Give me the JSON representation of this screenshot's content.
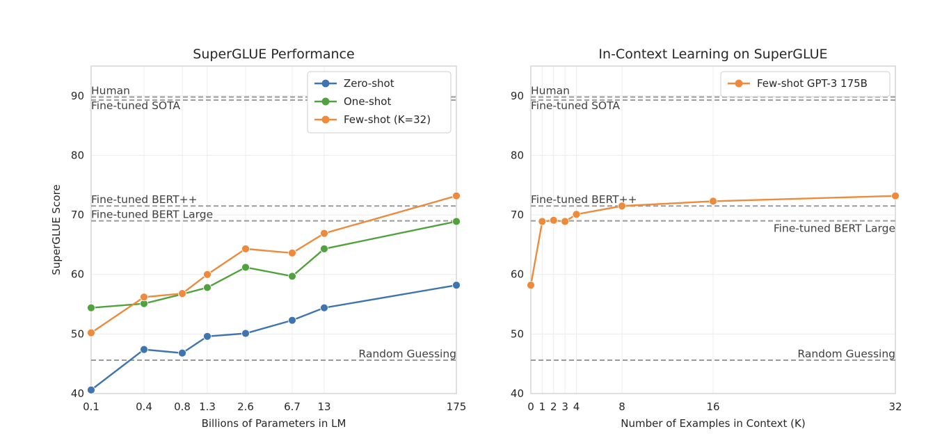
{
  "chart_data": [
    {
      "type": "line",
      "title": "SuperGLUE Performance",
      "xlabel": "Billions of Parameters in LM",
      "ylabel": "SuperGLUE Score",
      "ylim": [
        40,
        95
      ],
      "yticks": [
        40,
        50,
        60,
        70,
        80,
        90
      ],
      "x_categories": [
        "0.1",
        "0.4",
        "0.8",
        "1.3",
        "2.6",
        "6.7",
        "13",
        "175"
      ],
      "series": [
        {
          "name": "Zero-shot",
          "color": "#3e74b0",
          "values": [
            40.6,
            47.4,
            46.8,
            49.6,
            50.1,
            52.3,
            54.4,
            58.2
          ]
        },
        {
          "name": "One-shot",
          "color": "#51a23f",
          "values": [
            54.4,
            55.1,
            56.7,
            57.8,
            61.2,
            59.7,
            64.3,
            68.9
          ]
        },
        {
          "name": "Few-shot (K=32)",
          "color": "#ee8a3c",
          "values": [
            50.2,
            56.2,
            56.8,
            60.0,
            64.3,
            63.6,
            66.9,
            73.2
          ]
        }
      ],
      "reference_lines": [
        {
          "label": "Human",
          "value": 89.8,
          "label_position": "left"
        },
        {
          "label": "Fine-tuned SOTA",
          "value": 89.3,
          "label_position": "left"
        },
        {
          "label": "Fine-tuned BERT++",
          "value": 71.5,
          "label_position": "left"
        },
        {
          "label": "Fine-tuned BERT Large",
          "value": 69.0,
          "label_position": "left"
        },
        {
          "label": "Random Guessing",
          "value": 45.6,
          "label_position": "right"
        }
      ],
      "legend": "top-right",
      "grid": true
    },
    {
      "type": "line",
      "title": "In-Context Learning on SuperGLUE",
      "xlabel": "Number of Examples in Context (K)",
      "ylabel": "",
      "ylim": [
        40,
        95
      ],
      "xlim": [
        0,
        32
      ],
      "yticks": [
        40,
        50,
        60,
        70,
        80,
        90
      ],
      "xticks": [
        0,
        1,
        2,
        3,
        4,
        8,
        16,
        32
      ],
      "series": [
        {
          "name": "Few-shot GPT-3 175B",
          "color": "#ee8a3c",
          "x": [
            0,
            1,
            2,
            3,
            4,
            8,
            16,
            32
          ],
          "values": [
            58.2,
            68.9,
            69.1,
            68.9,
            70.1,
            71.5,
            72.3,
            73.2
          ]
        }
      ],
      "reference_lines": [
        {
          "label": "Human",
          "value": 89.8,
          "label_position": "left"
        },
        {
          "label": "Fine-tuned SOTA",
          "value": 89.3,
          "label_position": "left"
        },
        {
          "label": "Fine-tuned BERT++",
          "value": 71.5,
          "label_position": "left"
        },
        {
          "label": "Fine-tuned BERT Large",
          "value": 69.0,
          "label_position": "right-below"
        },
        {
          "label": "Random Guessing",
          "value": 45.6,
          "label_position": "right"
        }
      ],
      "legend": "top-right",
      "grid": true
    }
  ]
}
